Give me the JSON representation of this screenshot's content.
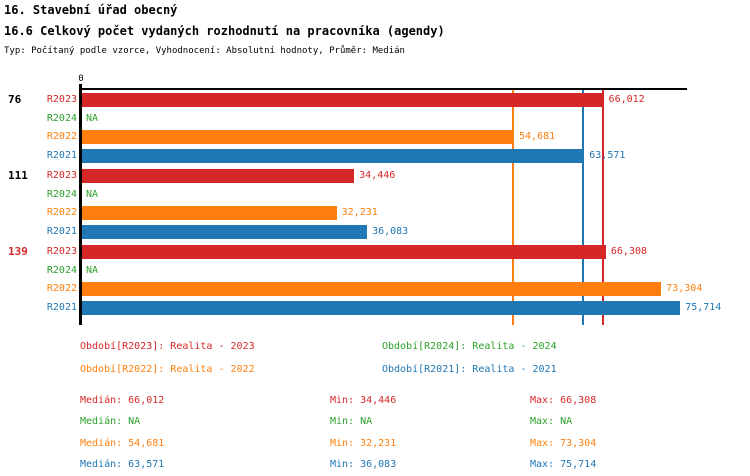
{
  "header": {
    "title": "16. Stavební úřad obecný",
    "subtitle": "16.6 Celkový počet vydaných rozhodnutí na pracovníka (agendy)",
    "meta": "Typ: Počítaný podle vzorce, Vyhodnocení: Absolutní hodnoty, Průměr: Medián"
  },
  "colors": {
    "R2023": "#d62728",
    "R2024": "#2ca02c",
    "R2022": "#ff7f0e",
    "R2021": "#1f77b4",
    "axis": "#000000",
    "text": "#000000",
    "highlight": "#d62728"
  },
  "chart_data": {
    "type": "bar",
    "orientation": "horizontal",
    "origin_label": "0",
    "xlim": [
      0,
      76700
    ],
    "grid": false,
    "series_order": [
      "R2023",
      "R2024",
      "R2022",
      "R2021"
    ],
    "groups": [
      {
        "label": "76",
        "highlighted": false,
        "values": {
          "R2023": 66012,
          "R2024": null,
          "R2022": 54681,
          "R2021": 63571
        },
        "display": {
          "R2023": "66,012",
          "R2024": "NA",
          "R2022": "54,681",
          "R2021": "63,571"
        }
      },
      {
        "label": "111",
        "highlighted": false,
        "values": {
          "R2023": 34446,
          "R2024": null,
          "R2022": 32231,
          "R2021": 36083
        },
        "display": {
          "R2023": "34,446",
          "R2024": "NA",
          "R2022": "32,231",
          "R2021": "36,083"
        }
      },
      {
        "label": "139",
        "highlighted": true,
        "values": {
          "R2023": 66308,
          "R2024": null,
          "R2022": 73304,
          "R2021": 75714
        },
        "display": {
          "R2023": "66,308",
          "R2024": "NA",
          "R2022": "73,304",
          "R2021": "75,714"
        }
      }
    ],
    "median_lines": [
      {
        "series": "R2022",
        "value": 54681
      },
      {
        "series": "R2021",
        "value": 63571
      },
      {
        "series": "R2023",
        "value": 66012
      }
    ]
  },
  "legend": {
    "items": [
      {
        "series": "R2023",
        "label": "Období[R2023]: Realita - 2023"
      },
      {
        "series": "R2024",
        "label": "Období[R2024]: Realita - 2024"
      },
      {
        "series": "R2022",
        "label": "Období[R2022]: Realita - 2022"
      },
      {
        "series": "R2021",
        "label": "Období[R2021]: Realita - 2021"
      }
    ]
  },
  "stats": {
    "rows": [
      {
        "series": "R2023",
        "median": "Medián: 66,012",
        "min": "Min: 34,446",
        "max": "Max: 66,308"
      },
      {
        "series": "R2024",
        "median": "Medián: NA",
        "min": "Min: NA",
        "max": "Max: NA"
      },
      {
        "series": "R2022",
        "median": "Medián: 54,681",
        "min": "Min: 32,231",
        "max": "Max: 73,304"
      },
      {
        "series": "R2021",
        "median": "Medián: 63,571",
        "min": "Min: 36,083",
        "max": "Max: 75,714"
      }
    ]
  }
}
